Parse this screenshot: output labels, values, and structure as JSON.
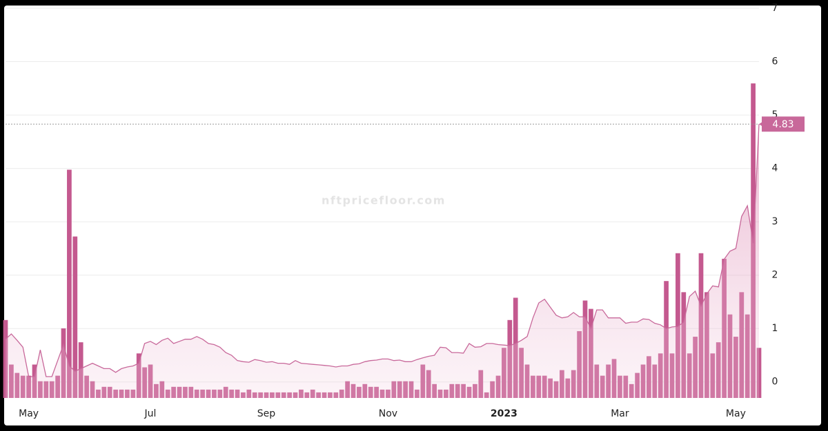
{
  "chart_data": {
    "type": "line",
    "watermark": "nftpricefloor.com",
    "categories": [
      null,
      null,
      null,
      null,
      "May",
      null,
      null,
      null,
      null,
      null,
      null,
      null,
      null,
      null,
      null,
      null,
      null,
      null,
      null,
      null,
      null,
      null,
      null,
      null,
      null,
      "Jul",
      null,
      null,
      null,
      null,
      null,
      null,
      null,
      null,
      null,
      null,
      null,
      null,
      null,
      null,
      null,
      null,
      null,
      null,
      null,
      "Sep",
      null,
      null,
      null,
      null,
      null,
      null,
      null,
      null,
      null,
      null,
      null,
      null,
      null,
      null,
      null,
      null,
      null,
      null,
      null,
      null,
      "Nov",
      null,
      null,
      null,
      null,
      null,
      null,
      null,
      null,
      null,
      null,
      null,
      null,
      null,
      null,
      null,
      null,
      null,
      null,
      null,
      "2023",
      null,
      null,
      null,
      null,
      null,
      null,
      null,
      null,
      null,
      null,
      null,
      null,
      null,
      null,
      null,
      null,
      null,
      null,
      null,
      "Mar",
      null,
      null,
      null,
      null,
      null,
      null,
      null,
      null,
      null,
      null,
      null,
      null,
      null,
      null,
      null,
      null,
      null,
      null,
      null,
      "May",
      null,
      null,
      null,
      null
    ],
    "series": [
      {
        "color": "#c8689a",
        "values": [
          0.8,
          0.9,
          0.78,
          0.65,
          0.1,
          0.1,
          0.6,
          0.1,
          0.1,
          0.4,
          0.7,
          0.3,
          0.2,
          0.25,
          0.3,
          0.35,
          0.3,
          0.25,
          0.25,
          0.18,
          0.25,
          0.28,
          0.3,
          0.35,
          0.72,
          0.76,
          0.7,
          0.78,
          0.82,
          0.72,
          0.76,
          0.8,
          0.8,
          0.85,
          0.8,
          0.72,
          0.7,
          0.65,
          0.55,
          0.5,
          0.4,
          0.38,
          0.37,
          0.42,
          0.4,
          0.37,
          0.38,
          0.35,
          0.35,
          0.33,
          0.4,
          0.35,
          0.34,
          0.33,
          0.32,
          0.31,
          0.3,
          0.28,
          0.3,
          0.3,
          0.33,
          0.34,
          0.38,
          0.4,
          0.41,
          0.43,
          0.43,
          0.4,
          0.41,
          0.38,
          0.38,
          0.42,
          0.45,
          0.48,
          0.5,
          0.65,
          0.64,
          0.55,
          0.55,
          0.54,
          0.72,
          0.65,
          0.66,
          0.72,
          0.72,
          0.7,
          0.69,
          0.68,
          0.72,
          0.78,
          0.85,
          1.2,
          1.48,
          1.55,
          1.4,
          1.25,
          1.2,
          1.22,
          1.3,
          1.22,
          1.22,
          1.0,
          1.35,
          1.35,
          1.2,
          1.2,
          1.2,
          1.1,
          1.12,
          1.12,
          1.18,
          1.17,
          1.1,
          1.07,
          1.0,
          1.03,
          1.04,
          1.12,
          1.6,
          1.7,
          1.42,
          1.65,
          1.8,
          1.78,
          2.3,
          2.45,
          2.5,
          3.1,
          3.3,
          2.6,
          4.83
        ]
      },
      {
        "type": "bar",
        "axis": "y2",
        "color": "#c4598f",
        "values": [
          28,
          12,
          9,
          8,
          8,
          12,
          6,
          6,
          6,
          8,
          25,
          82,
          58,
          20,
          8,
          6,
          3,
          4,
          4,
          3,
          3,
          3,
          3,
          16,
          11,
          12,
          5,
          6,
          3,
          4,
          4,
          4,
          4,
          3,
          3,
          3,
          3,
          3,
          4,
          3,
          3,
          2,
          3,
          2,
          2,
          2,
          2,
          2,
          2,
          2,
          2,
          3,
          2,
          3,
          2,
          2,
          2,
          2,
          3,
          6,
          5,
          4,
          5,
          4,
          4,
          3,
          3,
          6,
          6,
          6,
          6,
          3,
          12,
          10,
          5,
          3,
          3,
          5,
          5,
          5,
          4,
          5,
          10,
          2,
          6,
          8,
          18,
          28,
          36,
          18,
          12,
          8,
          8,
          8,
          7,
          6,
          10,
          7,
          10,
          24,
          35,
          32,
          12,
          8,
          12,
          14,
          8,
          8,
          5,
          9,
          12,
          15,
          12,
          16,
          42,
          16,
          52,
          38,
          16,
          22,
          52,
          38,
          16,
          20,
          50,
          30,
          22,
          38,
          30,
          113,
          18
        ]
      }
    ],
    "ylim": [
      -0.3,
      7
    ],
    "yticks": [
      0,
      1,
      2,
      3,
      4,
      5,
      6,
      7
    ],
    "y2lim": [
      0,
      140
    ],
    "grid": true
  }
}
